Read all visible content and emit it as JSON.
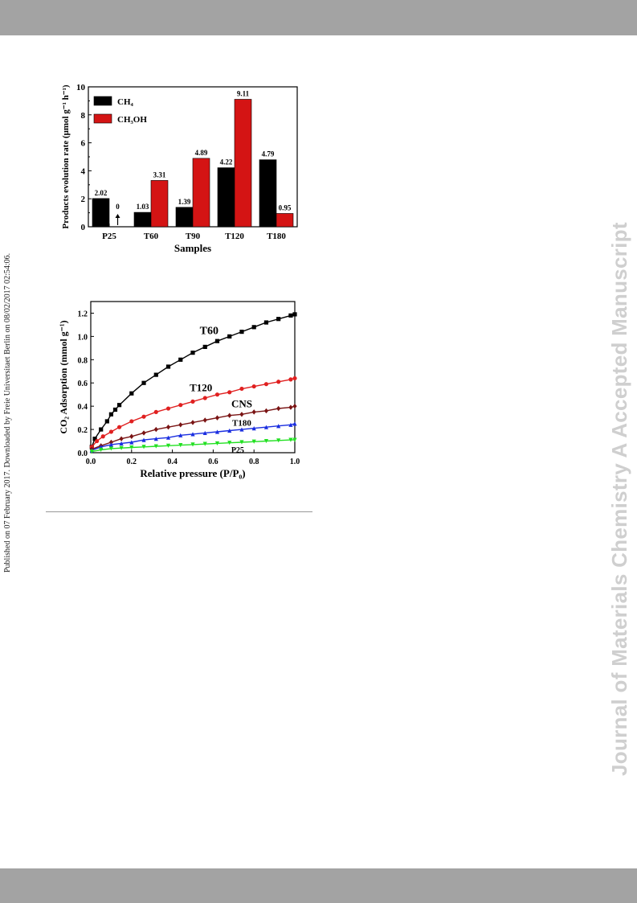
{
  "page": {
    "side_note": "Published on 07 February 2017. Downloaded by Freie Universitaet Berlin on 08/02/2017 02:54:06.",
    "watermark": "Journal of Materials Chemistry A Accepted Manuscript"
  },
  "chart_data": [
    {
      "type": "bar",
      "xlabel": "Samples",
      "ylabel": "Products evolution rate (μmol g⁻¹ h⁻¹)",
      "ylim": [
        0,
        10
      ],
      "yticks": [
        0,
        2,
        4,
        6,
        8,
        10
      ],
      "categories": [
        "P25",
        "T60",
        "T90",
        "T120",
        "T180"
      ],
      "series": [
        {
          "name": "CH₄",
          "color": "#000000",
          "values": [
            2.02,
            1.03,
            1.39,
            4.22,
            4.79
          ],
          "labels": [
            "2.02",
            "1.03",
            "1.39",
            "4.22",
            "4.79"
          ]
        },
        {
          "name": "CH₃OH",
          "color": "#d41414",
          "values": [
            0,
            3.31,
            4.89,
            9.11,
            0.95
          ],
          "labels": [
            "0",
            "3.31",
            "4.89",
            "9.11",
            "0.95"
          ]
        }
      ],
      "legend": "top-left"
    },
    {
      "type": "line",
      "xlabel": "Relative pressure (P/P₀)",
      "ylabel": "CO₂ Adsorption (mmol g⁻¹)",
      "xlim": [
        0,
        1.0
      ],
      "ylim": [
        0,
        1.3
      ],
      "xticks": [
        "0.0",
        "0.2",
        "0.4",
        "0.6",
        "0.8",
        "1.0"
      ],
      "yticks": [
        "0.0",
        "0.2",
        "0.4",
        "0.6",
        "0.8",
        "1.0",
        "1.2"
      ],
      "series": [
        {
          "name": "T60",
          "color": "#000000",
          "marker": "square",
          "x": [
            0.005,
            0.02,
            0.05,
            0.08,
            0.1,
            0.12,
            0.14,
            0.2,
            0.26,
            0.32,
            0.38,
            0.44,
            0.5,
            0.56,
            0.62,
            0.68,
            0.74,
            0.8,
            0.86,
            0.92,
            0.98,
            1.0
          ],
          "y": [
            0.05,
            0.12,
            0.2,
            0.27,
            0.33,
            0.37,
            0.41,
            0.51,
            0.6,
            0.67,
            0.74,
            0.8,
            0.86,
            0.91,
            0.96,
            1.0,
            1.04,
            1.08,
            1.12,
            1.15,
            1.18,
            1.19
          ]
        },
        {
          "name": "T120",
          "color": "#e02020",
          "marker": "circle",
          "x": [
            0.005,
            0.03,
            0.06,
            0.1,
            0.14,
            0.2,
            0.26,
            0.32,
            0.38,
            0.44,
            0.5,
            0.56,
            0.62,
            0.68,
            0.74,
            0.8,
            0.86,
            0.92,
            0.98,
            1.0
          ],
          "y": [
            0.05,
            0.1,
            0.14,
            0.18,
            0.22,
            0.27,
            0.31,
            0.35,
            0.38,
            0.41,
            0.44,
            0.47,
            0.5,
            0.52,
            0.55,
            0.57,
            0.59,
            0.61,
            0.63,
            0.64
          ]
        },
        {
          "name": "CNS",
          "color": "#7a1414",
          "marker": "diamond",
          "x": [
            0.005,
            0.05,
            0.1,
            0.15,
            0.2,
            0.26,
            0.32,
            0.38,
            0.44,
            0.5,
            0.56,
            0.62,
            0.68,
            0.74,
            0.8,
            0.86,
            0.92,
            0.98,
            1.0
          ],
          "y": [
            0.03,
            0.06,
            0.09,
            0.12,
            0.14,
            0.17,
            0.2,
            0.22,
            0.24,
            0.26,
            0.28,
            0.3,
            0.32,
            0.33,
            0.35,
            0.36,
            0.38,
            0.39,
            0.4
          ]
        },
        {
          "name": "T180",
          "color": "#1a2ee0",
          "marker": "triangle",
          "x": [
            0.005,
            0.05,
            0.1,
            0.15,
            0.2,
            0.26,
            0.32,
            0.38,
            0.44,
            0.5,
            0.56,
            0.62,
            0.68,
            0.74,
            0.8,
            0.86,
            0.92,
            0.98,
            1.0
          ],
          "y": [
            0.02,
            0.05,
            0.07,
            0.08,
            0.09,
            0.11,
            0.12,
            0.13,
            0.15,
            0.16,
            0.17,
            0.18,
            0.19,
            0.2,
            0.21,
            0.22,
            0.23,
            0.24,
            0.25
          ]
        },
        {
          "name": "P25",
          "color": "#22e022",
          "marker": "inverted-triangle",
          "x": [
            0.005,
            0.05,
            0.1,
            0.15,
            0.2,
            0.26,
            0.32,
            0.38,
            0.44,
            0.5,
            0.56,
            0.62,
            0.68,
            0.74,
            0.8,
            0.86,
            0.92,
            0.98,
            1.0
          ],
          "y": [
            0.01,
            0.025,
            0.035,
            0.04,
            0.045,
            0.05,
            0.055,
            0.06,
            0.065,
            0.07,
            0.075,
            0.08,
            0.085,
            0.09,
            0.095,
            0.1,
            0.105,
            0.11,
            0.11
          ]
        }
      ],
      "curve_labels": [
        "T60",
        "T120",
        "CNS",
        "T180",
        "P25"
      ]
    }
  ]
}
